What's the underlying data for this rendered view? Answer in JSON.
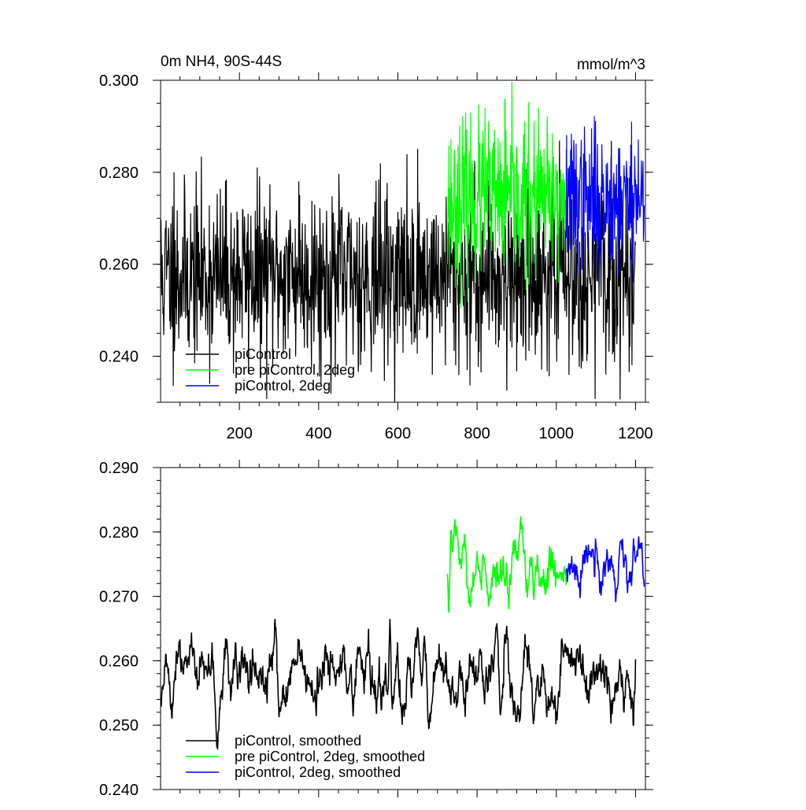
{
  "chart_data": [
    {
      "type": "line",
      "title": "0m NH4, 90S-44S",
      "units": "mmol/m^3",
      "xlim": [
        1,
        1225
      ],
      "ylim": [
        0.23,
        0.3
      ],
      "x_ticks": [
        200,
        400,
        600,
        800,
        1000,
        1200
      ],
      "y_ticks": [
        0.24,
        0.26,
        0.28,
        0.3
      ],
      "y_tick_labels": [
        "0.240",
        "0.260",
        "0.280",
        "0.300"
      ],
      "legend_position": "bottom-left",
      "series": [
        {
          "name": "piControl",
          "color": "#000000",
          "x_start": 1,
          "x_end": 1200,
          "mean": 0.2575,
          "amplitude": 0.0095,
          "seed": 11,
          "peaks": [
            [
              35,
              0.28
            ],
            [
              350,
              0.278
            ],
            [
              470,
              0.238
            ],
            [
              775,
              0.237
            ]
          ]
        },
        {
          "name": "pre piControl, 2deg",
          "color": "#00ff00",
          "x_start": 725,
          "x_end": 1025,
          "mean": 0.2735,
          "amplitude": 0.0085,
          "seed": 23,
          "peaks": [
            [
              725,
              0.26
            ],
            [
              870,
              0.296
            ],
            [
              820,
              0.294
            ]
          ]
        },
        {
          "name": "piControl, 2deg",
          "color": "#0000ff",
          "x_start": 1025,
          "x_end": 1222,
          "mean": 0.274,
          "amplitude": 0.0075,
          "seed": 37,
          "peaks": [
            [
              1190,
              0.291
            ],
            [
              1080,
              0.263
            ]
          ]
        }
      ]
    },
    {
      "type": "line",
      "title": "",
      "xlim": [
        1,
        1225
      ],
      "ylim": [
        0.24,
        0.29
      ],
      "x_ticks": [
        200,
        400,
        600,
        800,
        1000,
        1200
      ],
      "y_ticks": [
        0.24,
        0.25,
        0.26,
        0.27,
        0.28,
        0.29
      ],
      "y_tick_labels": [
        "0.240",
        "0.250",
        "0.260",
        "0.270",
        "0.280",
        "0.290"
      ],
      "legend_position": "bottom-left",
      "series": [
        {
          "name": "piControl, smoothed",
          "color": "#000000",
          "x_start": 1,
          "x_end": 1200,
          "mean": 0.2575,
          "amplitude": 0.0032,
          "seed": 51,
          "peaks": [
            [
              30,
              0.251
            ],
            [
              290,
              0.2665
            ],
            [
              580,
              0.2665
            ],
            [
              1195,
              0.25
            ]
          ]
        },
        {
          "name": "pre piControl, 2deg, smoothed",
          "color": "#00ff00",
          "x_start": 725,
          "x_end": 1025,
          "mean": 0.2745,
          "amplitude": 0.0028,
          "seed": 63,
          "peaks": [
            [
              728,
              0.2675
            ],
            [
              745,
              0.281
            ],
            [
              880,
              0.268
            ]
          ]
        },
        {
          "name": "piControl, 2deg, smoothed",
          "color": "#0000ff",
          "x_start": 1025,
          "x_end": 1222,
          "mean": 0.2745,
          "amplitude": 0.0022,
          "seed": 77,
          "peaks": [
            [
              1195,
              0.279
            ],
            [
              1180,
              0.2705
            ],
            [
              1222,
              0.2715
            ]
          ]
        }
      ]
    }
  ]
}
